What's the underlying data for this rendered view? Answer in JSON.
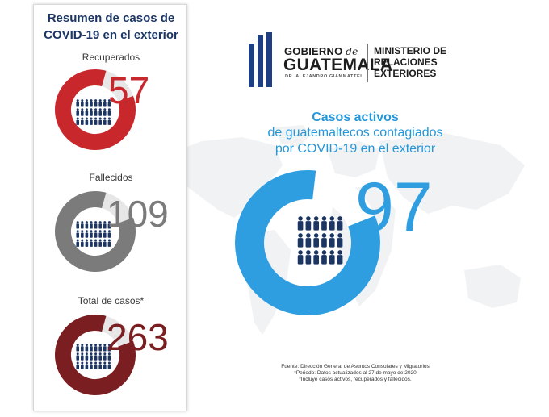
{
  "panel": {
    "title_line1": "Resumen de casos de",
    "title_line2": "COVID-19 en el exterior",
    "stats": [
      {
        "label": "Recuperados",
        "value": "57",
        "color": "#c8282c",
        "track": "#e7e7e7"
      },
      {
        "label": "Fallecidos",
        "value": "109",
        "color": "#7b7b7b",
        "track": "#e7e7e7"
      },
      {
        "label": "Total de casos*",
        "value": "263",
        "color": "#7b1e21",
        "track": "#e7e7e7"
      }
    ]
  },
  "logo": {
    "gobierno": "GOBIERNO",
    "de": "de",
    "guatemala": "GUATEMALA",
    "president": "DR. ALEJANDRO GIAMMATTEI",
    "ministry_line1": "MINISTERIO DE",
    "ministry_line2": "RELACIONES",
    "ministry_line3": "EXTERIORES",
    "color": "#1e3f83"
  },
  "active": {
    "title": "Casos activos",
    "subtitle_line1": "de guatemaltecos contagiados",
    "subtitle_line2": "por COVID-19 en el exterior",
    "value": "97",
    "color": "#2e9ee1",
    "people_color": "#1c3664"
  },
  "footer": {
    "line1": "Fuente: Dirección General de Asuntos Consulares y Migratorios",
    "line2": "*Periodo: Datos actualizados al 27 de mayo de 2020",
    "line3": "*Incluye casos activos, recuperados y fallecidos."
  }
}
